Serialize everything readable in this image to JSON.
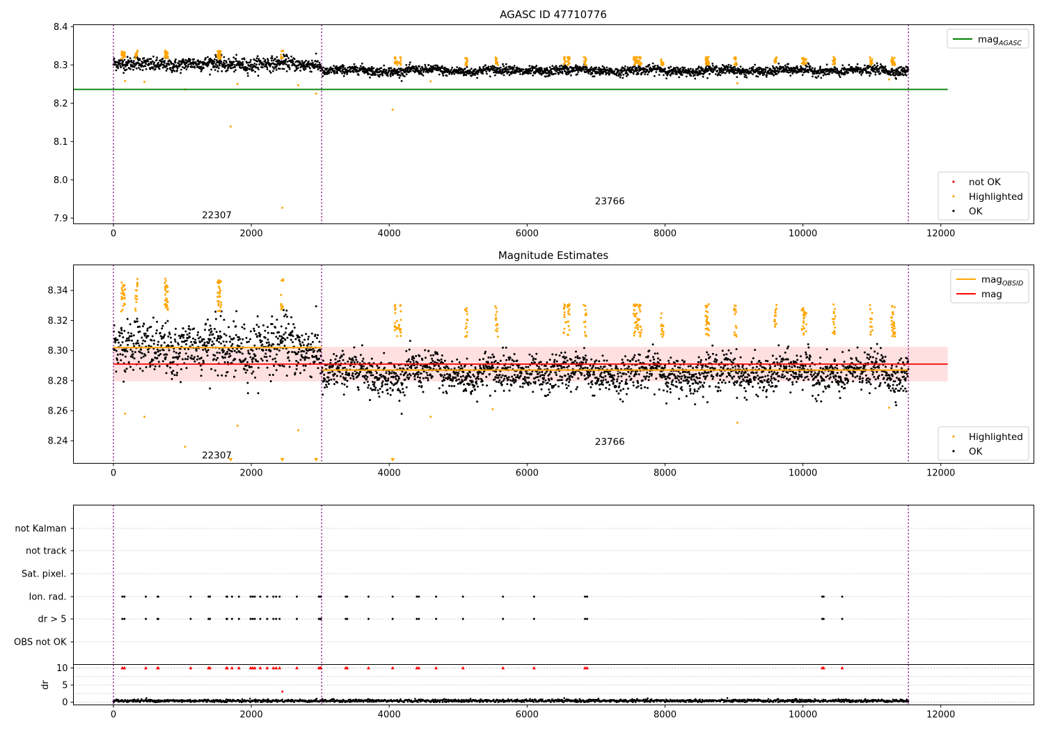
{
  "chart_data": [
    {
      "type": "scatter",
      "title": "AGASC ID 47710776",
      "xlim": [
        -580,
        13350
      ],
      "ylim": [
        7.885,
        8.405
      ],
      "xticks": [
        0,
        2000,
        4000,
        6000,
        8000,
        10000,
        12000
      ],
      "yticks": [
        7.9,
        8.0,
        8.1,
        8.2,
        8.3,
        8.4
      ],
      "observation_boundaries": [
        0,
        3020,
        11530
      ],
      "observation_labels": [
        {
          "text": "22307",
          "x": 1500,
          "y": 7.909
        },
        {
          "text": "23766",
          "x": 7200,
          "y": 7.945
        }
      ],
      "reference_line": {
        "name": "mag_AGASC",
        "y": 8.236,
        "x_range": [
          -580,
          12100
        ],
        "color": "#008000"
      },
      "series": [
        {
          "name": "not OK",
          "color": "#ff0000"
        },
        {
          "name": "Highlighted",
          "color": "#ffa500"
        },
        {
          "name": "OK",
          "color": "#000000"
        }
      ],
      "segments": [
        {
          "x_range": [
            0,
            3020
          ],
          "mean": 8.302,
          "spread": 0.009
        },
        {
          "x_range": [
            3020,
            11530
          ],
          "mean": 8.285,
          "spread": 0.006
        }
      ],
      "outliers": [
        {
          "x": 170,
          "y": 8.258
        },
        {
          "x": 450,
          "y": 8.256
        },
        {
          "x": 1040,
          "y": 8.236
        },
        {
          "x": 1700,
          "y": 8.139
        },
        {
          "x": 1800,
          "y": 8.25
        },
        {
          "x": 2450,
          "y": 7.927
        },
        {
          "x": 2680,
          "y": 8.247
        },
        {
          "x": 2940,
          "y": 8.225
        },
        {
          "x": 4050,
          "y": 8.183
        },
        {
          "x": 4600,
          "y": 8.257
        },
        {
          "x": 9050,
          "y": 8.252
        },
        {
          "x": 11250,
          "y": 8.262
        }
      ],
      "legends": [
        {
          "placement": "upper right",
          "items": [
            {
              "label": "mag",
              "sub": "AGASC",
              "kind": "line",
              "color": "#008000"
            }
          ]
        },
        {
          "placement": "lower right",
          "items": [
            {
              "label": "not OK",
              "kind": "dot",
              "color": "#ff0000"
            },
            {
              "label": "Highlighted",
              "kind": "dot",
              "color": "#ffa500"
            },
            {
              "label": "OK",
              "kind": "dot",
              "color": "#000000"
            }
          ]
        }
      ]
    },
    {
      "type": "scatter",
      "title": "Magnitude Estimates",
      "xlim": [
        -580,
        13350
      ],
      "ylim": [
        8.225,
        8.357
      ],
      "xticks": [
        0,
        2000,
        4000,
        6000,
        8000,
        10000,
        12000
      ],
      "yticks": [
        8.24,
        8.26,
        8.28,
        8.3,
        8.32,
        8.34
      ],
      "observation_boundaries": [
        0,
        3020,
        11530
      ],
      "observation_labels": [
        {
          "text": "22307",
          "x": 1500,
          "y": 8.2305
        },
        {
          "text": "23766",
          "x": 7200,
          "y": 8.2395
        }
      ],
      "mag_band": {
        "y_range": [
          8.2795,
          8.3025
        ],
        "x_range": [
          0,
          12100
        ],
        "color": "#ff9999"
      },
      "mag_line": {
        "name": "mag",
        "y": 8.291,
        "color": "#ff0000"
      },
      "obsid_lines": [
        {
          "x_range": [
            0,
            3020
          ],
          "y": 8.302
        },
        {
          "x_range": [
            3020,
            11530
          ],
          "y": 8.287
        }
      ],
      "series": [
        {
          "name": "Highlighted",
          "color": "#ffa500"
        },
        {
          "name": "OK",
          "color": "#000000"
        }
      ],
      "outliers": [
        {
          "x": 170,
          "y": 8.258
        },
        {
          "x": 450,
          "y": 8.256
        },
        {
          "x": 1040,
          "y": 8.236
        },
        {
          "x": 1800,
          "y": 8.25
        },
        {
          "x": 2680,
          "y": 8.247
        },
        {
          "x": 9050,
          "y": 8.252
        },
        {
          "x": 5500,
          "y": 8.261
        },
        {
          "x": 11250,
          "y": 8.262
        },
        {
          "x": 4600,
          "y": 8.256
        }
      ],
      "below_range_markers": [
        1700,
        2450,
        2940,
        4050
      ],
      "legends": [
        {
          "placement": "upper right",
          "items": [
            {
              "label": "mag",
              "sub": "OBSID",
              "kind": "line",
              "color": "#ffa500"
            },
            {
              "label": "mag",
              "kind": "line",
              "color": "#ff0000"
            }
          ]
        },
        {
          "placement": "lower right",
          "items": [
            {
              "label": "Highlighted",
              "kind": "dot",
              "color": "#ffa500"
            },
            {
              "label": "OK",
              "kind": "dot",
              "color": "#000000"
            }
          ]
        }
      ]
    },
    {
      "type": "scatter",
      "title": "",
      "xlim": [
        -580,
        13350
      ],
      "categories": [
        "not Kalman",
        "not track",
        "Sat. pixel.",
        "Ion. rad.",
        "dr > 5",
        "OBS not OK"
      ],
      "flag_times": [
        130,
        160,
        470,
        640,
        650,
        1120,
        1380,
        1400,
        1640,
        1650,
        1720,
        1820,
        1990,
        2020,
        2050,
        2130,
        2230,
        2320,
        2360,
        2410,
        2660,
        2980,
        3000,
        3010,
        3370,
        3390,
        3700,
        4050,
        4400,
        4430,
        4680,
        5070,
        5650,
        6100,
        6840,
        6870,
        10280,
        10300,
        10570
      ],
      "flagged_rows": [
        "Ion. rad.",
        "dr > 5"
      ],
      "dr": {
        "ylabel": "dr",
        "ylim": [
          -0.8,
          11
        ],
        "yticks": [
          0,
          5,
          10
        ],
        "clip_value": 10,
        "typical": 0.4,
        "extra_points": [
          {
            "x": 2450,
            "y": 3.1
          }
        ]
      }
    }
  ]
}
